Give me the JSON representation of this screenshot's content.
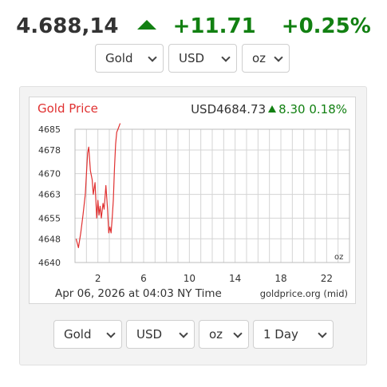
{
  "header": {
    "price": "4.688,14",
    "change": "+11.71",
    "change_pct": "+0.25%",
    "direction": "up"
  },
  "top_controls": {
    "metal": "Gold",
    "currency": "USD",
    "unit": "oz"
  },
  "widget": {
    "title": "Gold Price",
    "quote_currency_price": "USD4684.73",
    "quote_change": "8.30",
    "quote_change_pct": "0.18%",
    "timestamp": "Apr 06, 2026 at 04:03 NY Time",
    "source": "goldprice.org (mid)",
    "unit_label": "oz"
  },
  "bottom_controls": {
    "metal": "Gold",
    "currency": "USD",
    "unit": "oz",
    "range": "1 Day"
  },
  "colors": {
    "up": "#128012",
    "chart_title": "#e03131",
    "line": "#e03131",
    "grid": "#d4d4d4"
  },
  "chart_data": {
    "type": "line",
    "title": "Gold Price",
    "xlabel": "",
    "ylabel": "",
    "x_ticks": [
      2,
      6,
      10,
      14,
      18,
      22
    ],
    "y_ticks": [
      4640,
      4648,
      4655,
      4663,
      4670,
      4678,
      4685
    ],
    "xlim": [
      0,
      24
    ],
    "ylim": [
      4640,
      4685
    ],
    "grid": true,
    "series": [
      {
        "name": "",
        "x": [
          0.1,
          0.3,
          0.5,
          0.7,
          0.9,
          1.1,
          1.2,
          1.35,
          1.5,
          1.6,
          1.75,
          1.9,
          2.0,
          2.1,
          2.2,
          2.3,
          2.45,
          2.55,
          2.7,
          2.85,
          2.95,
          3.05,
          3.15,
          3.25,
          3.35,
          3.45,
          3.55,
          3.65,
          3.75,
          3.85,
          3.95
        ],
        "y": [
          4648,
          4645,
          4650,
          4656,
          4663,
          4677,
          4679,
          4671,
          4668,
          4663,
          4667,
          4655,
          4661,
          4656,
          4659,
          4655,
          4660,
          4658,
          4666,
          4658,
          4650,
          4652,
          4650,
          4655,
          4661,
          4672,
          4680,
          4684,
          4685,
          4686,
          4687
        ]
      }
    ]
  }
}
